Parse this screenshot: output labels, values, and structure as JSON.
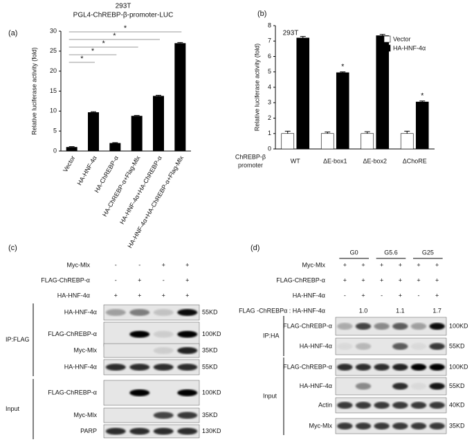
{
  "chart_data": [
    {
      "type": "bar",
      "panel_label": "(a)",
      "title": "293T",
      "subtitle": "PGL4-ChREBP-β-promoter-LUC",
      "y_label": "Relative luciferase activity (fold)",
      "categories": [
        "Vector",
        "HA-HNF-4α",
        "HA-ChREBP-α",
        "HA-ChREBP-α+Flag-Mlx",
        "HA-HNF-4α+HA-ChREBP-α",
        "HA-HNF-4α+HA-ChREBP-α+Flag-Mlx"
      ],
      "values": [
        1,
        9.7,
        2,
        8.8,
        13.8,
        27
      ],
      "errors": [
        0.1,
        0.15,
        0.1,
        0.1,
        0.15,
        0.15
      ],
      "color": "#000000",
      "ylim": [
        0,
        30
      ],
      "yticks": [
        0,
        5,
        10,
        15,
        20,
        25,
        30
      ],
      "significance": [
        "*",
        "*",
        "*",
        "*",
        "*"
      ]
    },
    {
      "type": "grouped_bar",
      "panel_label": "(b)",
      "title": "293T",
      "y_label": "Relative luciferase activity (fold)",
      "x_label": [
        "ChREBP-β",
        "promoter"
      ],
      "categories": [
        "WT",
        "ΔE-box1",
        "ΔE-box2",
        "ΔChoRE"
      ],
      "series": [
        {
          "name": "Vector",
          "color": "#ffffff",
          "values": [
            1,
            1,
            1,
            1
          ],
          "errors": [
            0.15,
            0.1,
            0.12,
            0.15
          ]
        },
        {
          "name": "HA-HNF-4α",
          "color": "#000000",
          "values": [
            7.2,
            4.95,
            7.35,
            3.05
          ],
          "errors": [
            0.1,
            0.05,
            0.08,
            0.06
          ]
        }
      ],
      "ylim": [
        0,
        8
      ],
      "yticks": [
        0,
        1,
        2,
        3,
        4,
        5,
        6,
        7,
        8
      ],
      "legend": "upper right",
      "significance": [
        null,
        "*",
        null,
        "*"
      ]
    }
  ],
  "blots": [
    {
      "panel_label": "(c)",
      "conditions": [
        {
          "label": "Myc-Mlx",
          "signs": [
            "-",
            "-",
            "+",
            "+"
          ]
        },
        {
          "label": "FLAG-ChREBP-α",
          "signs": [
            "-",
            "+",
            "-",
            "+"
          ]
        },
        {
          "label": "HA-HNF-4α",
          "signs": [
            "+",
            "+",
            "+",
            "+"
          ]
        }
      ],
      "groups": [
        {
          "label": "IP:FLAG",
          "rows": [
            {
              "label": "HA-HNF-4α",
              "size": "55KD"
            },
            {
              "label": "FLAG-ChREBP-α",
              "size": "100KD"
            },
            {
              "label": "Myc-Mlx",
              "size": "35KD"
            },
            {
              "label": "HA-HNF-4α",
              "size": "55KD"
            }
          ]
        },
        {
          "label": "Input",
          "rows": [
            {
              "label": "FLAG-ChREBP-α",
              "size": "100KD"
            },
            {
              "label": "Myc-Mlx",
              "size": "35KD"
            },
            {
              "label": "PARP",
              "size": "130KD"
            }
          ]
        }
      ]
    },
    {
      "panel_label": "(d)",
      "lane_groups": [
        "G0",
        "G5.6",
        "G25"
      ],
      "conditions": [
        {
          "label": "Myc-Mlx",
          "signs": [
            "+",
            "+",
            "+",
            "+",
            "+",
            "+"
          ]
        },
        {
          "label": "FLAG-ChREBP-α",
          "signs": [
            "+",
            "+",
            "+",
            "+",
            "+",
            "+"
          ]
        },
        {
          "label": "HA-HNF-4α",
          "signs": [
            "-",
            "+",
            "-",
            "+",
            "-",
            "+"
          ]
        }
      ],
      "ratio": {
        "label": "FLAG -ChREBPα : HA-HNF-4α",
        "values": [
          "1.0",
          "1.1",
          "1.7"
        ]
      },
      "groups": [
        {
          "label": "IP:HA",
          "rows": [
            {
              "label": "FLAG-ChREBP-α",
              "size": "100KD"
            },
            {
              "label": "HA-HNF-4α",
              "size": "55KD"
            }
          ]
        },
        {
          "label": "Input",
          "rows": [
            {
              "label": "FLAG-ChREBP-α",
              "size": "100KD"
            },
            {
              "label": "HA-HNF-4α",
              "size": "55KD"
            },
            {
              "label": "Actin",
              "size": "40KD"
            },
            {
              "label": "Myc-Mlx",
              "size": "35KD"
            }
          ]
        }
      ]
    }
  ]
}
